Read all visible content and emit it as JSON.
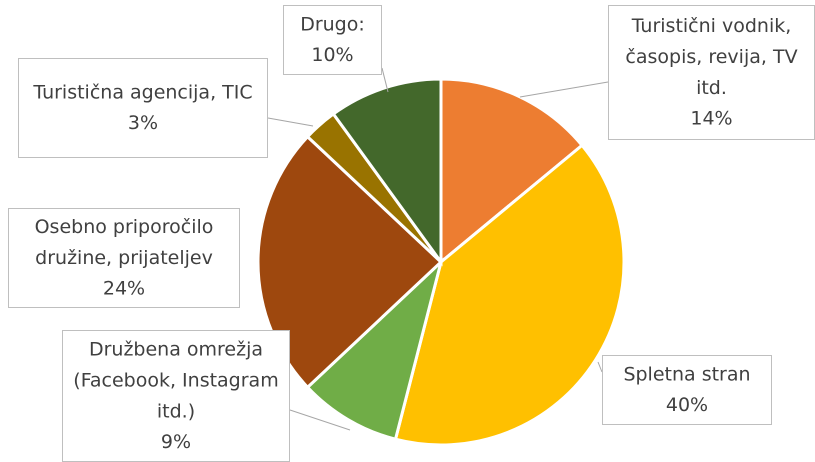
{
  "chart_data": {
    "type": "pie",
    "categories": [
      "Turistični vodnik, časopis, revija, TV itd.",
      "Spletna stran",
      "Družbena omrežja (Facebook, Instagram itd.)",
      "Osebno priporočilo družine, prijateljev",
      "Turistična agencija, TIC",
      "Drugo:"
    ],
    "values": [
      14,
      40,
      9,
      24,
      3,
      10
    ],
    "value_labels": [
      "14%",
      "40%",
      "9%",
      "24%",
      "3%",
      "10%"
    ],
    "colors": [
      "#ED7D31",
      "#FFC000",
      "#70AD47",
      "#9E480E",
      "#997300",
      "#43682B"
    ]
  }
}
